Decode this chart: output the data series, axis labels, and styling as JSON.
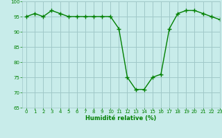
{
  "x": [
    0,
    1,
    2,
    3,
    4,
    5,
    6,
    7,
    8,
    9,
    10,
    11,
    12,
    13,
    14,
    15,
    16,
    17,
    18,
    19,
    20,
    21,
    22,
    23
  ],
  "y": [
    95,
    96,
    95,
    97,
    96,
    95,
    95,
    95,
    95,
    95,
    95,
    91,
    75,
    71,
    71,
    75,
    76,
    91,
    96,
    97,
    97,
    96,
    95,
    94
  ],
  "line_color": "#008000",
  "marker": "+",
  "marker_color": "#008000",
  "bg_color": "#c8ecea",
  "grid_color": "#a0c8c8",
  "xlabel": "Humidité relative (%)",
  "xlabel_color": "#008000",
  "tick_color": "#008000",
  "ylim": [
    65,
    100
  ],
  "xlim": [
    -0.5,
    23
  ],
  "yticks": [
    65,
    70,
    75,
    80,
    85,
    90,
    95,
    100
  ],
  "xticks": [
    0,
    1,
    2,
    3,
    4,
    5,
    6,
    7,
    8,
    9,
    10,
    11,
    12,
    13,
    14,
    15,
    16,
    17,
    18,
    19,
    20,
    21,
    22,
    23
  ],
  "linewidth": 1.0,
  "markersize": 5,
  "tick_fontsize": 5.0,
  "xlabel_fontsize": 6.0
}
